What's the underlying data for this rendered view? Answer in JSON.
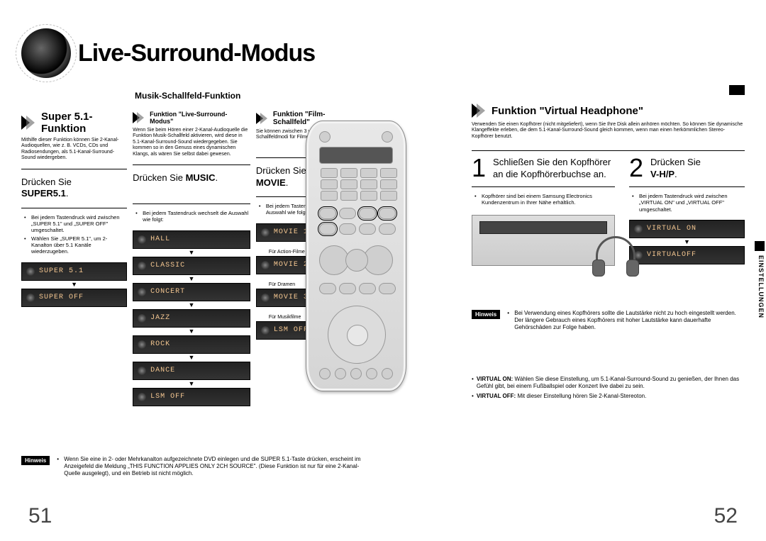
{
  "title": "Live-Surround-Modus",
  "subheading": "Musik-Schallfeld-Funktion",
  "colors": {
    "display_bg": "#2a2a2a",
    "display_text": "#f6c892",
    "black": "#000000",
    "grey": "#666666"
  },
  "left": {
    "sections": [
      {
        "title": "Super 5.1-Funktion",
        "desc": "Mithilfe dieser Funktion können Sie 2-Kanal-Audioquellen, wie z. B. VCDs, CDs und Radiosendungen, als 5.1-Kanal-Surround-Sound wiedergeben.",
        "instruction_pre": "Drücken Sie",
        "instruction_bold": "SUPER5.1",
        "notes": [
          "Bei jedem Tastendruck wird zwischen „SUPER 5.1\" und „SUPER OFF\" umgeschaltet.",
          "Wählen Sie „SUPER 5.1\", um 2-Kanalton über 5.1 Kanäle wiederzugeben."
        ],
        "displays": [
          "SUPER 5.1",
          "SUPER OFF"
        ]
      },
      {
        "title": "Funktion \"Live-Surround-Modus\"",
        "desc": "Wenn Sie beim Hören einer 2-Kanal-Audioquelle die Funktion Musik-Schallfeld aktivieren, wird diese in 5.1-Kanal-Surround-Sound wiedergegeben. Sie kommen so in den Genuss eines dynamischen Klangs, als wären Sie selbst dabei gewesen.",
        "instruction_pre": "Drücken Sie ",
        "instruction_bold": "MUSIC",
        "notes": [
          "Bei jedem Tastendruck wechselt die Auswahl wie folgt:"
        ],
        "displays": [
          "HALL",
          "CLASSIC",
          "CONCERT",
          "JAZZ",
          "ROCK",
          "DANCE",
          "LSM OFF"
        ]
      },
      {
        "title": "Funktion \"Film-Schallfeld\"",
        "desc": "Sie können zwischen 3 verschiedenen Schallfeldmodi für Filme wählen.",
        "instruction_pre": "Drücken Sie",
        "instruction_bold": "MOVIE",
        "notes": [
          "Bei jedem Tastendruck wechselt die Auswahl wie folgt:"
        ],
        "displays_captioned": [
          {
            "text": "MOVIE 1",
            "caption": "Für Action-Filme"
          },
          {
            "text": "MOVIE 2",
            "caption": "Für Dramen"
          },
          {
            "text": "MOVIE 3",
            "caption": "Für Musikfilme"
          },
          {
            "text": "LSM OFF",
            "caption": ""
          }
        ]
      }
    ],
    "hinweis_label": "Hinweis",
    "hinweis_text": "Wenn Sie eine in 2- oder Mehrkanalton aufgezeichnete DVD einlegen und die SUPER 5.1-Taste drücken, erscheint im Anzeigefeld die Meldung „THIS FUNCTION APPLIES ONLY 2CH SOURCE\". (Diese Funktion ist nur für eine 2-Kanal-Quelle ausgelegt), und ein Betrieb ist nicht möglich.",
    "page_number": "51"
  },
  "right": {
    "section_title": "Funktion \"Virtual Headphone\"",
    "section_desc": "Verwenden Sie einen Kopfhörer (nicht mitgeliefert), wenn Sie Ihre Disk allein anhören möchten. So können Sie dynamische Klangeffekte erleben, die dem 5.1-Kanal-Surround-Sound gleich kommen, wenn man einen herkömmlichen Stereo-Kopfhörer benutzt.",
    "step1": {
      "num": "1",
      "text": "Schließen Sie den Kopfhörer an die Kopfhörerbuchse an.",
      "note": "Kopfhörer sind bei einem Samsung Electronics Kundenzentrum in Ihrer Nähe erhältlich."
    },
    "step2": {
      "num": "2",
      "pre": "Drücken Sie",
      "bold": "V-H/P",
      "note": "Bei jedem Tastendruck wird zwischen „VIRTUAL ON\" und „VIRTUAL OFF\" umgeschaltet.",
      "displays": [
        "VIRTUAL ON",
        "VIRTUALOFF"
      ]
    },
    "tab_label": "EINSTELLUNGEN",
    "hinweis_label": "Hinweis",
    "hinweis_text": "Bei Verwendung eines Kopfhörers sollte die Lautstärke nicht zu hoch eingestellt werden. Der längere Gebrauch eines Kopfhörers mit hoher Lautstärke kann dauerhafte Gehörschäden zur Folge haben.",
    "virtual_on_label": "VIRTUAL ON:",
    "virtual_on_text": "Wählen Sie diese Einstellung, um 5.1-Kanal-Surround-Sound zu genießen, der Ihnen das Gefühl gibt, bei einem Fußballspiel oder Konzert live dabei zu sein.",
    "virtual_off_label": "VIRTUAL OFF:",
    "virtual_off_text": "Mit dieser Einstellung hören Sie 2-Kanal-Stereoton.",
    "page_number": "52"
  }
}
